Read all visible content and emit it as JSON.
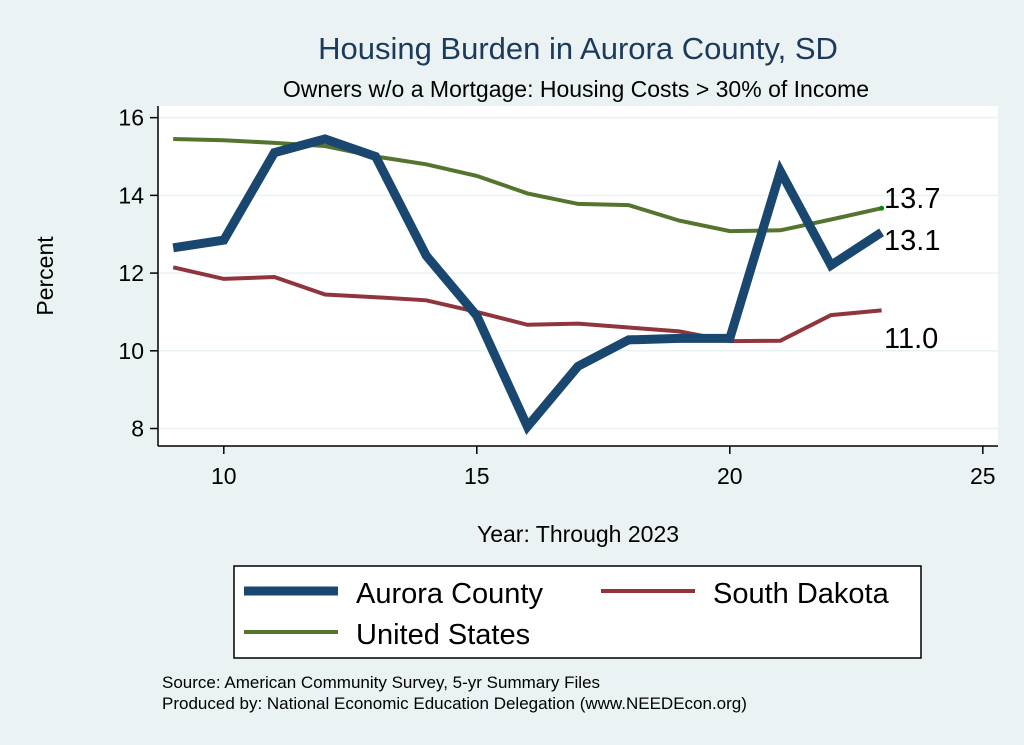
{
  "colors": {
    "background": "#eaf2f3",
    "plot_background": "#ffffff",
    "aurora": "#1a476f",
    "south_dakota": "#90353b",
    "united_states": "#55752f"
  },
  "chart_data": {
    "type": "line",
    "title": "Housing Burden in Aurora County, SD",
    "subtitle": "Owners w/o a Mortgage: Housing Costs > 30% of Income",
    "xlabel": "Year: Through 2023",
    "ylabel": "Percent",
    "xlim": [
      8.7,
      25.3
    ],
    "ylim": [
      7.55,
      16.3
    ],
    "xticks": [
      10,
      15,
      20,
      25
    ],
    "yticks": [
      8,
      10,
      12,
      14,
      16
    ],
    "grid": true,
    "x": [
      9,
      10,
      11,
      12,
      13,
      14,
      15,
      16,
      17,
      18,
      19,
      20,
      21,
      22,
      23
    ],
    "series": [
      {
        "name": "Aurora County",
        "color_key": "aurora",
        "values": [
          12.65,
          12.85,
          15.1,
          15.45,
          15.0,
          12.45,
          10.9,
          8.05,
          9.6,
          10.28,
          10.32,
          10.32,
          14.62,
          12.2,
          13.05
        ],
        "end_label": "13.1"
      },
      {
        "name": "South Dakota",
        "color_key": "south_dakota",
        "values": [
          12.15,
          11.85,
          11.9,
          11.45,
          11.38,
          11.3,
          11.0,
          10.67,
          10.7,
          10.6,
          10.5,
          10.25,
          10.26,
          10.92,
          11.04
        ],
        "end_label": "11.0"
      },
      {
        "name": "United States",
        "color_key": "united_states",
        "values": [
          15.45,
          15.42,
          15.35,
          15.27,
          15.0,
          14.8,
          14.5,
          14.05,
          13.78,
          13.75,
          13.35,
          13.08,
          13.1,
          13.38,
          13.67
        ],
        "end_label": "13.7"
      }
    ],
    "legend": {
      "placement": "bottom",
      "entries": [
        "Aurora County",
        "South Dakota",
        "United States"
      ]
    }
  },
  "notes": {
    "source": "Source: American Community Survey, 5-yr Summary Files",
    "produced_by": "Produced by: National Economic Education Delegation (www.NEEDEcon.org)"
  }
}
